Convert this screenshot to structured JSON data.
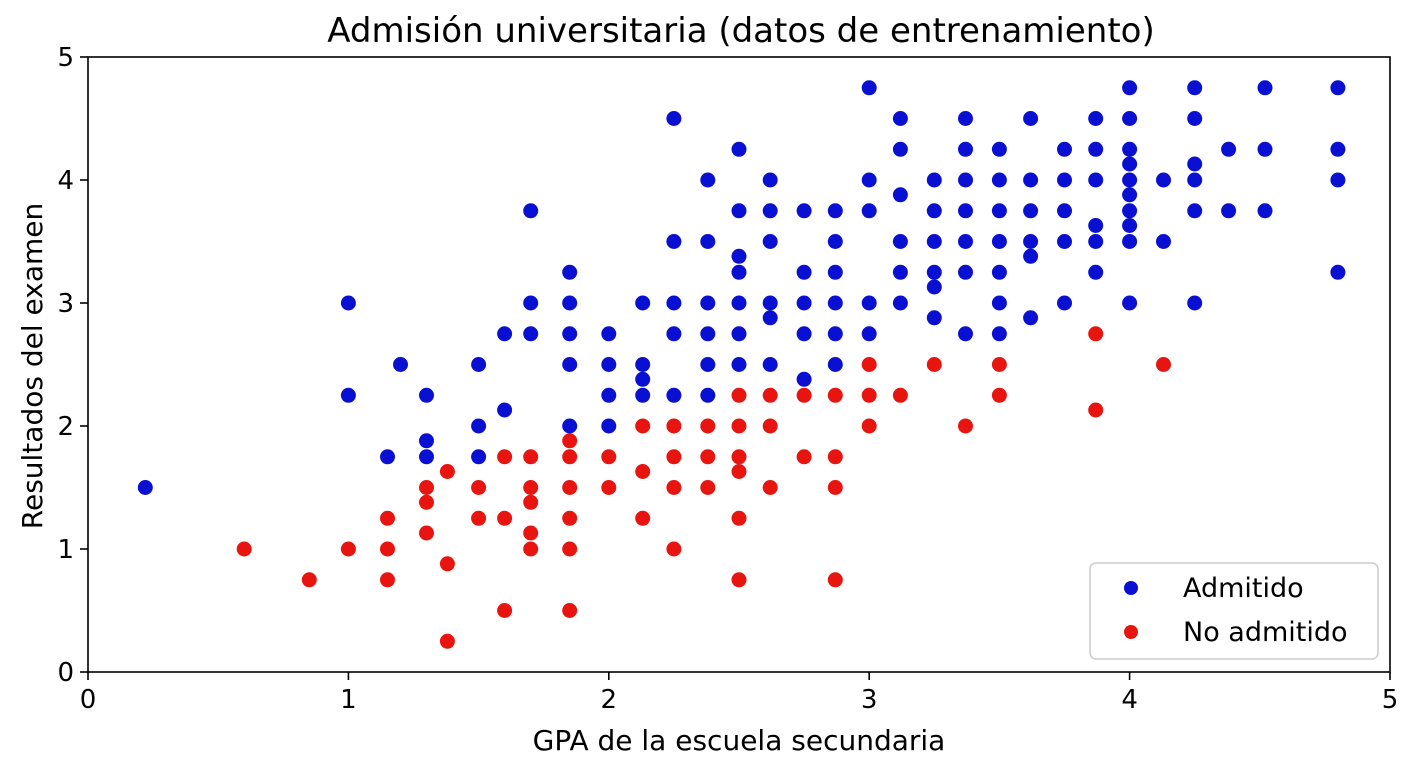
{
  "chart_data": {
    "type": "scatter",
    "title": "Admisión universitaria (datos de entrenamiento)",
    "xlabel": "GPA de la escuela secundaria",
    "ylabel": "Resultados del examen",
    "xlim": [
      0,
      5
    ],
    "ylim": [
      0,
      5
    ],
    "xticks": [
      "0",
      "1",
      "2",
      "3",
      "4",
      "5"
    ],
    "yticks": [
      "0",
      "1",
      "2",
      "3",
      "4",
      "5"
    ],
    "grid": false,
    "legend_position": "lower-right",
    "series": [
      {
        "name": "Admitido",
        "color": "#0a10d2",
        "points": [
          [
            0.22,
            1.5
          ],
          [
            1.0,
            3.0
          ],
          [
            1.0,
            2.25
          ],
          [
            1.15,
            1.75
          ],
          [
            1.2,
            2.5
          ],
          [
            1.3,
            2.25
          ],
          [
            1.3,
            1.88
          ],
          [
            1.3,
            1.75
          ],
          [
            1.5,
            2.5
          ],
          [
            1.5,
            2.0
          ],
          [
            1.5,
            1.75
          ],
          [
            1.6,
            2.75
          ],
          [
            1.6,
            2.13
          ],
          [
            1.7,
            3.75
          ],
          [
            1.7,
            3.0
          ],
          [
            1.7,
            2.75
          ],
          [
            1.85,
            3.25
          ],
          [
            1.85,
            3.0
          ],
          [
            1.85,
            2.75
          ],
          [
            1.85,
            2.5
          ],
          [
            1.85,
            2.0
          ],
          [
            2.0,
            2.75
          ],
          [
            2.0,
            2.5
          ],
          [
            2.0,
            2.25
          ],
          [
            2.0,
            2.0
          ],
          [
            2.13,
            3.0
          ],
          [
            2.13,
            2.5
          ],
          [
            2.13,
            2.38
          ],
          [
            2.13,
            2.25
          ],
          [
            2.25,
            4.5
          ],
          [
            2.25,
            3.5
          ],
          [
            2.25,
            3.0
          ],
          [
            2.25,
            2.75
          ],
          [
            2.25,
            2.25
          ],
          [
            2.38,
            4.0
          ],
          [
            2.38,
            3.5
          ],
          [
            2.38,
            3.0
          ],
          [
            2.38,
            2.75
          ],
          [
            2.38,
            2.5
          ],
          [
            2.38,
            2.25
          ],
          [
            2.5,
            4.25
          ],
          [
            2.5,
            3.75
          ],
          [
            2.5,
            3.38
          ],
          [
            2.5,
            3.25
          ],
          [
            2.5,
            3.0
          ],
          [
            2.5,
            2.75
          ],
          [
            2.5,
            2.5
          ],
          [
            2.62,
            4.0
          ],
          [
            2.62,
            3.75
          ],
          [
            2.62,
            3.5
          ],
          [
            2.62,
            3.0
          ],
          [
            2.62,
            2.88
          ],
          [
            2.62,
            2.5
          ],
          [
            2.75,
            3.75
          ],
          [
            2.75,
            3.25
          ],
          [
            2.75,
            3.0
          ],
          [
            2.75,
            2.75
          ],
          [
            2.75,
            2.38
          ],
          [
            2.87,
            3.75
          ],
          [
            2.87,
            3.5
          ],
          [
            2.87,
            3.25
          ],
          [
            2.87,
            3.0
          ],
          [
            2.87,
            2.75
          ],
          [
            2.87,
            2.5
          ],
          [
            3.0,
            4.75
          ],
          [
            3.0,
            4.0
          ],
          [
            3.0,
            3.75
          ],
          [
            3.0,
            3.0
          ],
          [
            3.0,
            2.75
          ],
          [
            3.12,
            4.5
          ],
          [
            3.12,
            4.25
          ],
          [
            3.12,
            3.88
          ],
          [
            3.12,
            3.5
          ],
          [
            3.12,
            3.25
          ],
          [
            3.12,
            3.0
          ],
          [
            3.25,
            4.0
          ],
          [
            3.25,
            3.75
          ],
          [
            3.25,
            3.5
          ],
          [
            3.25,
            3.25
          ],
          [
            3.25,
            3.13
          ],
          [
            3.25,
            2.88
          ],
          [
            3.37,
            4.5
          ],
          [
            3.37,
            4.25
          ],
          [
            3.37,
            4.0
          ],
          [
            3.37,
            3.75
          ],
          [
            3.37,
            3.5
          ],
          [
            3.37,
            3.25
          ],
          [
            3.37,
            2.75
          ],
          [
            3.5,
            4.25
          ],
          [
            3.5,
            4.0
          ],
          [
            3.5,
            3.75
          ],
          [
            3.5,
            3.5
          ],
          [
            3.5,
            3.25
          ],
          [
            3.5,
            3.0
          ],
          [
            3.5,
            2.75
          ],
          [
            3.62,
            4.5
          ],
          [
            3.62,
            4.0
          ],
          [
            3.62,
            3.75
          ],
          [
            3.62,
            3.5
          ],
          [
            3.62,
            3.38
          ],
          [
            3.62,
            2.88
          ],
          [
            3.75,
            4.25
          ],
          [
            3.75,
            4.0
          ],
          [
            3.75,
            3.75
          ],
          [
            3.75,
            3.5
          ],
          [
            3.75,
            3.0
          ],
          [
            3.87,
            4.5
          ],
          [
            3.87,
            4.25
          ],
          [
            3.87,
            4.0
          ],
          [
            3.87,
            3.63
          ],
          [
            3.87,
            3.5
          ],
          [
            3.87,
            3.25
          ],
          [
            4.0,
            4.75
          ],
          [
            4.0,
            4.5
          ],
          [
            4.0,
            4.25
          ],
          [
            4.0,
            4.13
          ],
          [
            4.0,
            4.0
          ],
          [
            4.0,
            3.88
          ],
          [
            4.0,
            3.75
          ],
          [
            4.0,
            3.63
          ],
          [
            4.0,
            3.5
          ],
          [
            4.0,
            3.0
          ],
          [
            4.13,
            4.0
          ],
          [
            4.13,
            3.5
          ],
          [
            4.25,
            4.75
          ],
          [
            4.25,
            4.5
          ],
          [
            4.25,
            4.13
          ],
          [
            4.25,
            4.0
          ],
          [
            4.25,
            3.75
          ],
          [
            4.25,
            3.0
          ],
          [
            4.38,
            4.25
          ],
          [
            4.38,
            3.75
          ],
          [
            4.52,
            4.75
          ],
          [
            4.52,
            4.25
          ],
          [
            4.52,
            3.75
          ],
          [
            4.8,
            4.75
          ],
          [
            4.8,
            4.25
          ],
          [
            4.8,
            4.0
          ],
          [
            4.8,
            3.25
          ]
        ]
      },
      {
        "name": "No admitido",
        "color": "#e8140f",
        "points": [
          [
            0.6,
            1.0
          ],
          [
            0.85,
            0.75
          ],
          [
            1.0,
            1.0
          ],
          [
            1.15,
            1.25
          ],
          [
            1.15,
            1.0
          ],
          [
            1.15,
            0.75
          ],
          [
            1.3,
            1.5
          ],
          [
            1.3,
            1.38
          ],
          [
            1.3,
            1.13
          ],
          [
            1.38,
            1.63
          ],
          [
            1.38,
            0.88
          ],
          [
            1.38,
            0.25
          ],
          [
            1.5,
            1.5
          ],
          [
            1.5,
            1.25
          ],
          [
            1.6,
            1.75
          ],
          [
            1.6,
            1.25
          ],
          [
            1.6,
            0.5
          ],
          [
            1.7,
            1.75
          ],
          [
            1.7,
            1.5
          ],
          [
            1.7,
            1.38
          ],
          [
            1.7,
            1.13
          ],
          [
            1.7,
            1.0
          ],
          [
            1.85,
            1.88
          ],
          [
            1.85,
            1.75
          ],
          [
            1.85,
            1.5
          ],
          [
            1.85,
            1.25
          ],
          [
            1.85,
            1.0
          ],
          [
            1.85,
            0.5
          ],
          [
            2.0,
            1.75
          ],
          [
            2.0,
            1.5
          ],
          [
            2.13,
            2.0
          ],
          [
            2.13,
            1.63
          ],
          [
            2.13,
            1.25
          ],
          [
            2.25,
            2.0
          ],
          [
            2.25,
            1.75
          ],
          [
            2.25,
            1.5
          ],
          [
            2.25,
            1.0
          ],
          [
            2.38,
            2.0
          ],
          [
            2.38,
            1.75
          ],
          [
            2.38,
            1.5
          ],
          [
            2.5,
            2.25
          ],
          [
            2.5,
            2.0
          ],
          [
            2.5,
            1.75
          ],
          [
            2.5,
            1.63
          ],
          [
            2.5,
            1.25
          ],
          [
            2.5,
            0.75
          ],
          [
            2.62,
            2.25
          ],
          [
            2.62,
            2.0
          ],
          [
            2.62,
            1.5
          ],
          [
            2.75,
            2.25
          ],
          [
            2.75,
            1.75
          ],
          [
            2.87,
            2.25
          ],
          [
            2.87,
            1.75
          ],
          [
            2.87,
            1.5
          ],
          [
            2.87,
            0.75
          ],
          [
            3.0,
            2.5
          ],
          [
            3.0,
            2.25
          ],
          [
            3.0,
            2.0
          ],
          [
            3.12,
            2.25
          ],
          [
            3.25,
            2.5
          ],
          [
            3.37,
            2.0
          ],
          [
            3.5,
            2.5
          ],
          [
            3.5,
            2.25
          ],
          [
            3.87,
            2.75
          ],
          [
            3.87,
            2.13
          ],
          [
            4.13,
            2.5
          ]
        ]
      }
    ]
  }
}
